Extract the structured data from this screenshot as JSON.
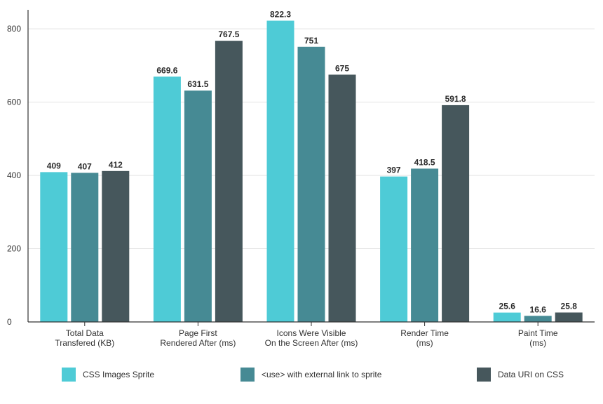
{
  "chart_data": {
    "type": "bar",
    "title": "",
    "xlabel": "",
    "ylabel": "",
    "ylim": [
      0,
      875
    ],
    "yticks": [
      0,
      200,
      400,
      600,
      800
    ],
    "grid": true,
    "legend_position": "bottom",
    "categories": [
      [
        "Total Data",
        "Transfered (KB)"
      ],
      [
        "Page First",
        "Rendered After (ms)"
      ],
      [
        "Icons Were Visible",
        "On the Screen After (ms)"
      ],
      [
        "Render Time",
        "(ms)"
      ],
      [
        "Paint Time",
        "(ms)"
      ]
    ],
    "series": [
      {
        "name": "CSS Images Sprite",
        "color": "#4ecbd6",
        "values": [
          409,
          669.6,
          822.3,
          397,
          25.6
        ],
        "labels": [
          "409",
          "669.6",
          "822.3",
          "397",
          "25.6"
        ]
      },
      {
        "name": "<use> with external link to sprite",
        "color": "#468a94",
        "values": [
          407,
          631.5,
          751,
          418.5,
          16.6
        ],
        "labels": [
          "407",
          "631.5",
          "751",
          "418.5",
          "16.6"
        ]
      },
      {
        "name": "Data URI on CSS",
        "color": "#46575c",
        "values": [
          412,
          767.5,
          675,
          591.8,
          25.8
        ],
        "labels": [
          "412",
          "767.5",
          "675",
          "591.8",
          "25.8"
        ]
      }
    ]
  }
}
